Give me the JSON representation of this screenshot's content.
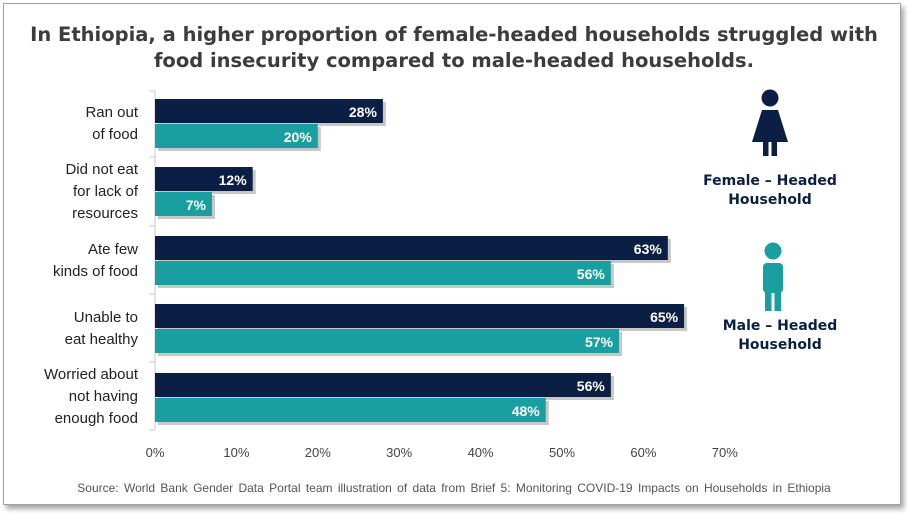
{
  "title": "In Ethiopia, a higher proportion of female-headed households  struggled with food insecurity compared to male-headed households.",
  "source": "Source: World Bank Gender Data Portal team illustration of data from Brief 5: Monitoring COVID-19 Impacts on Households in Ethiopia",
  "legend": {
    "female": "Female – Headed\nHousehold",
    "male": "Male – Headed\nHousehold"
  },
  "colors": {
    "female": "#0b1f44",
    "male": "#1a9fa0"
  },
  "icons": {
    "female": "female-person-icon",
    "male": "male-person-icon"
  },
  "chart_data": {
    "type": "bar",
    "orientation": "horizontal",
    "categories": [
      "Ran out\nof food",
      "Did not eat\nfor lack of\nresources",
      "Ate few\nkinds of food",
      "Unable to\neat healthy",
      "Worried about\nnot having\nenough food"
    ],
    "series": [
      {
        "name": "Female – Headed Household",
        "values": [
          28,
          12,
          63,
          65,
          56
        ],
        "labels": [
          "28%",
          "12%",
          "63%",
          "65%",
          "56%"
        ]
      },
      {
        "name": "Male – Headed Household",
        "values": [
          20,
          7,
          56,
          57,
          48
        ],
        "labels": [
          "20%",
          "7%",
          "56%",
          "57%",
          "48%"
        ]
      }
    ],
    "xlim": [
      0,
      70
    ],
    "xticks": [
      "0%",
      "10%",
      "20%",
      "30%",
      "40%",
      "50%",
      "60%",
      "70%"
    ],
    "grid": false,
    "legend_position": "right"
  }
}
